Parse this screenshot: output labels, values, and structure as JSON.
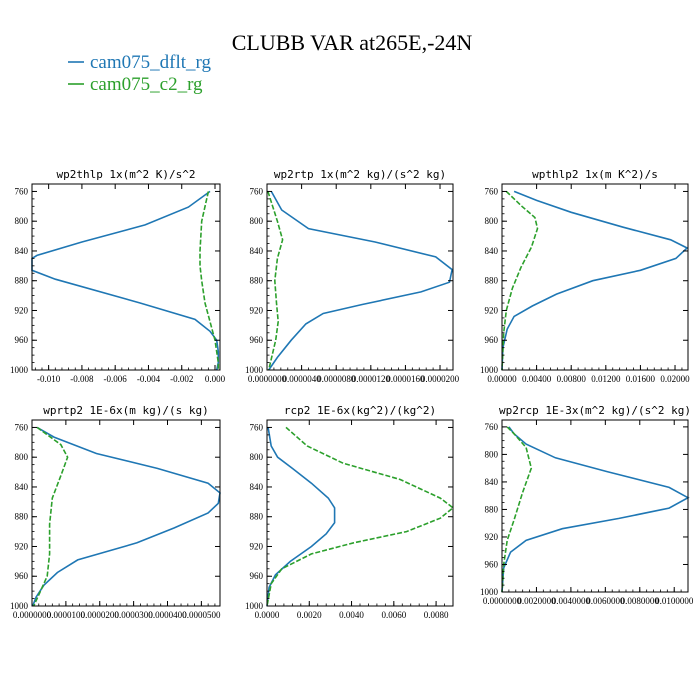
{
  "figure": {
    "title": "CLUBB VAR at265E,-24N",
    "legend": [
      {
        "label": "cam075_dflt_rg",
        "color": "#1f77b4",
        "dash": "solid"
      },
      {
        "label": "cam075_c2_rg",
        "color": "#2ca02c",
        "dash": "dashed"
      }
    ]
  },
  "chart_data": [
    {
      "type": "line",
      "title": "wp2thlp  1x(m^2 K)/s^2",
      "xlim": [
        -0.011,
        0.0003
      ],
      "ylim": [
        1000,
        750
      ],
      "y_inverted": true,
      "xticks": [
        -0.01,
        -0.008,
        -0.006,
        -0.004,
        -0.002,
        0.0
      ],
      "xticklabels": [
        "-0.010",
        "-0.008",
        "-0.006",
        "-0.004",
        "-0.002",
        "0.000"
      ],
      "yticks": [
        760,
        800,
        840,
        880,
        920,
        960,
        1000
      ],
      "series": [
        {
          "name": "cam075_dflt_rg",
          "points": [
            [
              -0.0003,
              760
            ],
            [
              -0.0016,
              781
            ],
            [
              -0.0042,
              805
            ],
            [
              -0.008,
              828
            ],
            [
              -0.0107,
              846
            ],
            [
              -0.011,
              850
            ],
            [
              -0.011,
              866
            ],
            [
              -0.0096,
              878
            ],
            [
              -0.0045,
              910
            ],
            [
              -0.0012,
              932
            ],
            [
              -0.0003,
              948
            ],
            [
              0.0001,
              960
            ],
            [
              0.0002,
              975
            ],
            [
              0.0002,
              990
            ],
            [
              0.0001,
              1000
            ]
          ]
        },
        {
          "name": "cam075_c2_rg",
          "points": [
            [
              -0.0004,
              760
            ],
            [
              -0.0008,
              800
            ],
            [
              -0.0009,
              840
            ],
            [
              -0.0009,
              860
            ],
            [
              -0.0008,
              880
            ],
            [
              -0.0006,
              910
            ],
            [
              -0.0003,
              935
            ],
            [
              0.0,
              960
            ],
            [
              0.0002,
              990
            ],
            [
              0.0002,
              1000
            ]
          ]
        }
      ]
    },
    {
      "type": "line",
      "title": "wp2rtp  1x(m^2 kg)/(s^2 kg)",
      "xlim": [
        0.0,
        2.15e-05
      ],
      "ylim": [
        1000,
        750
      ],
      "y_inverted": true,
      "xticks": [
        0.0,
        4e-06,
        8e-06,
        1.2e-05,
        1.6e-05,
        2e-05
      ],
      "xticklabels": [
        "0.0000000",
        "0.0000040",
        "0.0000080",
        "0.0000120",
        "0.0000160",
        "0.0000200"
      ],
      "yticks": [
        760,
        800,
        840,
        880,
        920,
        960,
        1000
      ],
      "series": [
        {
          "name": "cam075_dflt_rg",
          "points": [
            [
              5e-07,
              760
            ],
            [
              1.7e-06,
              785
            ],
            [
              4.8e-06,
              810
            ],
            [
              1.25e-05,
              828
            ],
            [
              1.95e-05,
              848
            ],
            [
              2.14e-05,
              865
            ],
            [
              2.11e-05,
              882
            ],
            [
              1.78e-05,
              895
            ],
            [
              1.1e-05,
              912
            ],
            [
              6.5e-06,
              924
            ],
            [
              4.5e-06,
              938
            ],
            [
              2.8e-06,
              960
            ],
            [
              1.2e-06,
              983
            ],
            [
              2e-07,
              1000
            ]
          ]
        },
        {
          "name": "cam075_c2_rg",
          "points": [
            [
              1e-07,
              760
            ],
            [
              1.2e-06,
              800
            ],
            [
              1.8e-06,
              825
            ],
            [
              1.2e-06,
              850
            ],
            [
              9e-07,
              880
            ],
            [
              1.1e-06,
              910
            ],
            [
              1.3e-06,
              935
            ],
            [
              1e-06,
              960
            ],
            [
              6e-07,
              980
            ],
            [
              2e-07,
              1000
            ]
          ]
        }
      ]
    },
    {
      "type": "line",
      "title": "wpthlp2  1x(m K^2)/s",
      "xlim": [
        0.0,
        0.0215
      ],
      "ylim": [
        1000,
        750
      ],
      "y_inverted": true,
      "xticks": [
        0.0,
        0.004,
        0.008,
        0.012,
        0.016,
        0.02
      ],
      "xticklabels": [
        "0.00000",
        "0.00400",
        "0.00800",
        "0.01200",
        "0.01600",
        "0.02000"
      ],
      "yticks": [
        760,
        800,
        840,
        880,
        920,
        960,
        1000
      ],
      "series": [
        {
          "name": "cam075_dflt_rg",
          "points": [
            [
              0.0014,
              760
            ],
            [
              0.004,
              772
            ],
            [
              0.008,
              788
            ],
            [
              0.014,
              808
            ],
            [
              0.0195,
              825
            ],
            [
              0.0214,
              836
            ],
            [
              0.0201,
              850
            ],
            [
              0.016,
              866
            ],
            [
              0.0105,
              880
            ],
            [
              0.0063,
              898
            ],
            [
              0.0035,
              914
            ],
            [
              0.0014,
              928
            ],
            [
              0.0006,
              945
            ],
            [
              0.0001,
              970
            ],
            [
              0.0,
              1000
            ]
          ]
        },
        {
          "name": "cam075_c2_rg",
          "points": [
            [
              0.0005,
              760
            ],
            [
              0.0023,
              780
            ],
            [
              0.0038,
              795
            ],
            [
              0.0041,
              810
            ],
            [
              0.0034,
              835
            ],
            [
              0.0022,
              862
            ],
            [
              0.0012,
              890
            ],
            [
              0.0005,
              920
            ],
            [
              0.0002,
              950
            ],
            [
              0.0,
              1000
            ]
          ]
        }
      ]
    },
    {
      "type": "line",
      "title": "wprtp2  1E-6x(m kg)/(s kg)",
      "xlim": [
        0.0,
        5.55e-05
      ],
      "ylim": [
        1000,
        750
      ],
      "y_inverted": true,
      "xticks": [
        0.0,
        1e-05,
        2e-05,
        3e-05,
        4e-05,
        5e-05
      ],
      "xticklabels": [
        "0.0000000",
        "0.0000100",
        "0.0000200",
        "0.0000300",
        "0.0000400",
        "0.0000500"
      ],
      "yticks": [
        760,
        800,
        840,
        880,
        920,
        960,
        1000
      ],
      "series": [
        {
          "name": "cam075_dflt_rg",
          "points": [
            [
              1.5e-06,
              760
            ],
            [
              6.5e-06,
              773
            ],
            [
              1.9e-05,
              795
            ],
            [
              3.7e-05,
              815
            ],
            [
              5.2e-05,
              835
            ],
            [
              5.55e-05,
              848
            ],
            [
              5.5e-05,
              862
            ],
            [
              5.2e-05,
              875
            ],
            [
              4.2e-05,
              895
            ],
            [
              3.1e-05,
              915
            ],
            [
              1.35e-05,
              938
            ],
            [
              7.5e-06,
              955
            ],
            [
              3.5e-06,
              972
            ],
            [
              1.2e-06,
              988
            ],
            [
              2e-07,
              1000
            ]
          ]
        },
        {
          "name": "cam075_c2_rg",
          "points": [
            [
              1.5e-06,
              760
            ],
            [
              8.5e-06,
              783
            ],
            [
              1.05e-05,
              800
            ],
            [
              8.5e-06,
              825
            ],
            [
              6e-06,
              855
            ],
            [
              5.2e-06,
              890
            ],
            [
              5.2e-06,
              930
            ],
            [
              4.5e-06,
              960
            ],
            [
              2e-06,
              985
            ],
            [
              5e-07,
              1000
            ]
          ]
        }
      ]
    },
    {
      "type": "line",
      "title": "rcp2  1E-6x(kg^2)/(kg^2)",
      "xlim": [
        0.0,
        0.0088
      ],
      "ylim": [
        1000,
        750
      ],
      "y_inverted": true,
      "xticks": [
        0.0,
        0.002,
        0.004,
        0.006,
        0.008
      ],
      "xticklabels": [
        "0.0000",
        "0.0020",
        "0.0040",
        "0.0060",
        "0.0080"
      ],
      "yticks": [
        760,
        800,
        840,
        880,
        920,
        960,
        1000
      ],
      "series": [
        {
          "name": "cam075_dflt_rg",
          "points": [
            [
              5e-05,
              760
            ],
            [
              0.0002,
              785
            ],
            [
              0.0005,
              800
            ],
            [
              0.0012,
              815
            ],
            [
              0.0021,
              835
            ],
            [
              0.0029,
              855
            ],
            [
              0.0032,
              868
            ],
            [
              0.0032,
              888
            ],
            [
              0.0028,
              903
            ],
            [
              0.0021,
              920
            ],
            [
              0.0011,
              940
            ],
            [
              0.0004,
              958
            ],
            [
              0.0001,
              975
            ],
            [
              0.0,
              1000
            ]
          ]
        },
        {
          "name": "cam075_c2_rg",
          "points": [
            [
              0.0009,
              760
            ],
            [
              0.0019,
              785
            ],
            [
              0.0036,
              808
            ],
            [
              0.0063,
              830
            ],
            [
              0.0082,
              855
            ],
            [
              0.0088,
              868
            ],
            [
              0.0082,
              882
            ],
            [
              0.0066,
              900
            ],
            [
              0.0041,
              915
            ],
            [
              0.0021,
              930
            ],
            [
              0.0007,
              950
            ],
            [
              0.0002,
              970
            ],
            [
              0.0,
              1000
            ]
          ]
        }
      ]
    },
    {
      "type": "line",
      "title": "wp2rcp  1E-3x(m^2 kg)/(s^2 kg)",
      "xlim": [
        0.0,
        0.000108
      ],
      "ylim": [
        1000,
        750
      ],
      "y_inverted": true,
      "xticks": [
        0.0,
        2e-05,
        4e-05,
        6e-05,
        8e-05,
        0.0001
      ],
      "xticklabels": [
        "0.0000000",
        "0.0020000",
        "0.0040000",
        "0.0060000",
        "0.0080000",
        "0.0100000"
      ],
      "yticks": [
        760,
        800,
        840,
        880,
        920,
        960,
        1000
      ],
      "series": [
        {
          "name": "cam075_dflt_rg",
          "points": [
            [
              4e-06,
              760
            ],
            [
              7e-06,
              770
            ],
            [
              1.4e-05,
              785
            ],
            [
              3.1e-05,
              805
            ],
            [
              6.1e-05,
              825
            ],
            [
              9.7e-05,
              848
            ],
            [
              0.000108,
              863
            ],
            [
              9.7e-05,
              878
            ],
            [
              6.8e-05,
              893
            ],
            [
              3.5e-05,
              908
            ],
            [
              1.4e-05,
              925
            ],
            [
              5e-06,
              942
            ],
            [
              1e-06,
              965
            ],
            [
              0.0,
              1000
            ]
          ]
        },
        {
          "name": "cam075_c2_rg",
          "points": [
            [
              3e-06,
              760
            ],
            [
              7e-06,
              770
            ],
            [
              1.4e-05,
              790
            ],
            [
              1.7e-05,
              820
            ],
            [
              1.2e-05,
              855
            ],
            [
              7e-06,
              895
            ],
            [
              3e-06,
              925
            ],
            [
              1e-06,
              960
            ],
            [
              0.0,
              1000
            ]
          ]
        }
      ]
    }
  ]
}
